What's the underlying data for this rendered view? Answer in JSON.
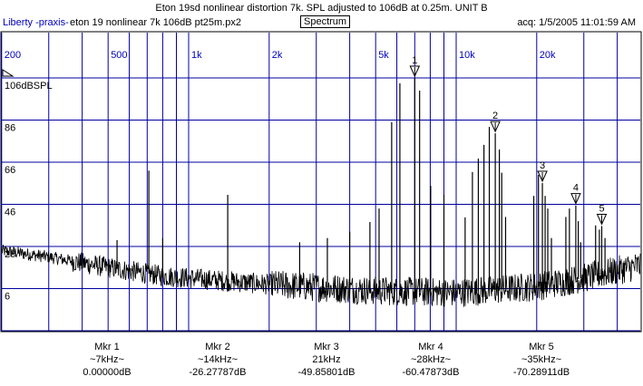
{
  "header": {
    "title": "Eton 19sd nonlinear distortion 7k. SPL adjusted to 106dB at 0.25m. UNIT B",
    "brand": "Liberty -praxis-",
    "file": "eton 19 nonlinear 7k 106dB pt25m.px2",
    "mode": "Spectrum",
    "acq": "acq: 1/5/2005 11:01:59 AM"
  },
  "chart_data": {
    "type": "line",
    "title": "Spectrum",
    "xscale": "log",
    "xlim": [
      200,
      48700
    ],
    "ylim": [
      -14,
      127.5
    ],
    "ylabel_unit": "dBSPL",
    "grid": true,
    "x_ticks": [
      {
        "v": 200,
        "label": "200"
      },
      {
        "v": 500,
        "label": "500"
      },
      {
        "v": 1000,
        "label": "1k"
      },
      {
        "v": 2000,
        "label": "2k"
      },
      {
        "v": 5000,
        "label": "5k"
      },
      {
        "v": 10000,
        "label": "10k"
      },
      {
        "v": 20000,
        "label": "20k"
      }
    ],
    "x_grid": [
      300,
      400,
      600,
      700,
      800,
      900,
      3000,
      4000,
      6000,
      7000,
      8000,
      9000,
      30000,
      40000
    ],
    "y_ticks": [
      {
        "v": 106,
        "label": "106dBSPL"
      },
      {
        "v": 86,
        "label": "86"
      },
      {
        "v": 66,
        "label": "66"
      },
      {
        "v": 46,
        "label": "46"
      },
      {
        "v": 26,
        "label": "26"
      },
      {
        "v": 6,
        "label": "6"
      }
    ],
    "noise_floor": [
      [
        200,
        24
      ],
      [
        300,
        21
      ],
      [
        500,
        16
      ],
      [
        800,
        12
      ],
      [
        1000,
        11
      ],
      [
        2000,
        8
      ],
      [
        5000,
        5
      ],
      [
        10000,
        4
      ],
      [
        20000,
        7
      ],
      [
        30000,
        11
      ],
      [
        48700,
        17
      ]
    ],
    "peaks": [
      [
        540,
        29
      ],
      [
        710,
        62
      ],
      [
        800,
        30
      ],
      [
        1400,
        50.5
      ],
      [
        2600,
        28
      ],
      [
        3300,
        30
      ],
      [
        4000,
        33
      ],
      [
        4760,
        37.6
      ],
      [
        5150,
        44
      ],
      [
        5740,
        85
      ],
      [
        6160,
        103.4
      ],
      [
        7000,
        106
      ],
      [
        7300,
        100
      ],
      [
        8030,
        54.8
      ],
      [
        9000,
        50.5
      ],
      [
        10800,
        39.8
      ],
      [
        11500,
        61.3
      ],
      [
        12100,
        67.7
      ],
      [
        12700,
        74.2
      ],
      [
        13300,
        82.8
      ],
      [
        14000,
        79.7
      ],
      [
        14500,
        72
      ],
      [
        14800,
        61
      ],
      [
        15300,
        40
      ],
      [
        19500,
        50
      ],
      [
        20300,
        60
      ],
      [
        21000,
        56.1
      ],
      [
        21500,
        50
      ],
      [
        22000,
        44
      ],
      [
        22700,
        30
      ],
      [
        25700,
        40
      ],
      [
        26500,
        44
      ],
      [
        28000,
        45.5
      ],
      [
        28600,
        38
      ],
      [
        29200,
        28
      ],
      [
        33200,
        36
      ],
      [
        34300,
        34
      ],
      [
        35000,
        35.7
      ],
      [
        36000,
        30
      ]
    ],
    "markers": [
      {
        "id": "1",
        "freq": 7000,
        "db": 106
      },
      {
        "id": "2",
        "freq": 14000,
        "db": 79.7
      },
      {
        "id": "3",
        "freq": 21000,
        "db": 56.1
      },
      {
        "id": "4",
        "freq": 28000,
        "db": 45.5
      },
      {
        "id": "5",
        "freq": 35000,
        "db": 35.7
      }
    ]
  },
  "marker_readouts": [
    {
      "name": "Mkr 1",
      "freq": "~7kHz~",
      "value": "0.00000dB"
    },
    {
      "name": "Mkr 2",
      "freq": "~14kHz~",
      "value": "-26.27787dB"
    },
    {
      "name": "Mkr 3",
      "freq": "21kHz",
      "value": "-49.85801dB"
    },
    {
      "name": "Mkr 4",
      "freq": "~28kHz~",
      "value": "-60.47873dB"
    },
    {
      "name": "Mkr 5",
      "freq": "~35kHz~",
      "value": "-70.28911dB"
    }
  ],
  "colors": {
    "grid": "#0000a0",
    "label": "#0000c0",
    "trace": "#000000"
  }
}
